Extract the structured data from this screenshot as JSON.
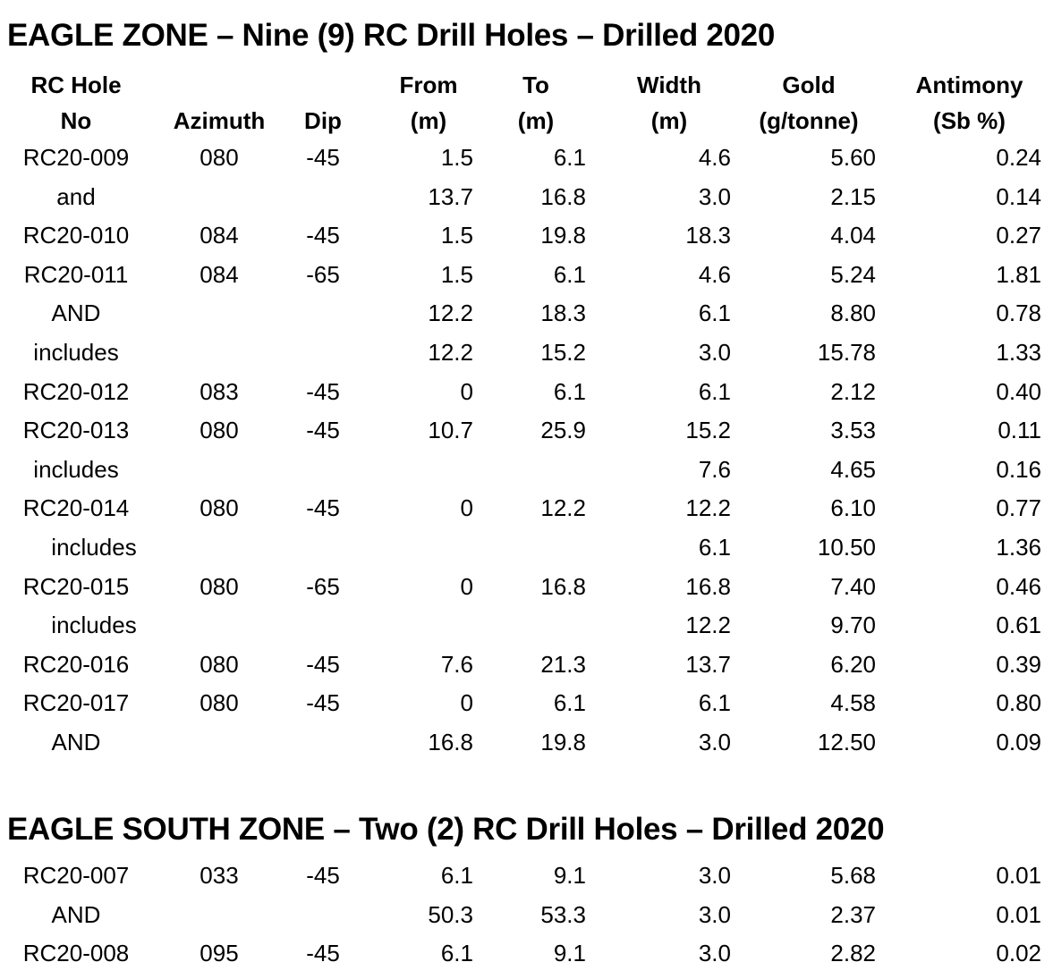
{
  "eagle_zone": {
    "title": "EAGLE ZONE – Nine (9) RC Drill Holes – Drilled 2020",
    "headers": {
      "hole": [
        "RC Hole",
        "No"
      ],
      "azimuth": [
        "",
        "Azimuth"
      ],
      "dip": [
        "",
        "Dip"
      ],
      "from": [
        "From",
        "(m)"
      ],
      "to": [
        "To",
        "(m)"
      ],
      "width": [
        "Width",
        "(m)"
      ],
      "gold": [
        "Gold",
        "(g/tonne)"
      ],
      "antimony": [
        "Antimony",
        "(Sb %)"
      ]
    },
    "rows": [
      {
        "hole": "RC20-009",
        "azimuth": "080",
        "dip": "-45",
        "from": "1.5",
        "to": "6.1",
        "width": "4.6",
        "gold": "5.60",
        "antimony": "0.24"
      },
      {
        "hole": "and",
        "azimuth": "",
        "dip": "",
        "from": "13.7",
        "to": "16.8",
        "width": "3.0",
        "gold": "2.15",
        "antimony": "0.14"
      },
      {
        "hole": "RC20-010",
        "azimuth": "084",
        "dip": "-45",
        "from": "1.5",
        "to": "19.8",
        "width": "18.3",
        "gold": "4.04",
        "antimony": "0.27"
      },
      {
        "hole": "RC20-011",
        "azimuth": "084",
        "dip": "-65",
        "from": "1.5",
        "to": "6.1",
        "width": "4.6",
        "gold": "5.24",
        "antimony": "1.81"
      },
      {
        "hole": "AND",
        "azimuth": "",
        "dip": "",
        "from": "12.2",
        "to": "18.3",
        "width": "6.1",
        "gold": "8.80",
        "antimony": "0.78"
      },
      {
        "hole": "includes",
        "azimuth": "",
        "dip": "",
        "from": "12.2",
        "to": "15.2",
        "width": "3.0",
        "gold": "15.78",
        "antimony": "1.33"
      },
      {
        "hole": "RC20-012",
        "azimuth": "083",
        "dip": "-45",
        "from": "0",
        "to": "6.1",
        "width": "6.1",
        "gold": "2.12",
        "antimony": "0.40"
      },
      {
        "hole": "RC20-013",
        "azimuth": "080",
        "dip": "-45",
        "from": "10.7",
        "to": "25.9",
        "width": "15.2",
        "gold": "3.53",
        "antimony": "0.11"
      },
      {
        "hole": "includes",
        "azimuth": "",
        "dip": "",
        "from": "",
        "to": "",
        "width": "7.6",
        "gold": "4.65",
        "antimony": "0.16"
      },
      {
        "hole": "RC20-014",
        "azimuth": "080",
        "dip": "-45",
        "from": "0",
        "to": "12.2",
        "width": "12.2",
        "gold": "6.10",
        "antimony": "0.77"
      },
      {
        "hole": "includes",
        "azimuth": "",
        "dip": "",
        "from": "",
        "to": "",
        "width": "6.1",
        "gold": "10.50",
        "antimony": "1.36",
        "indent": true
      },
      {
        "hole": "RC20-015",
        "azimuth": "080",
        "dip": "-65",
        "from": "0",
        "to": "16.8",
        "width": "16.8",
        "gold": "7.40",
        "antimony": "0.46"
      },
      {
        "hole": "includes",
        "azimuth": "",
        "dip": "",
        "from": "",
        "to": "",
        "width": "12.2",
        "gold": "9.70",
        "antimony": "0.61",
        "indent": true
      },
      {
        "hole": "RC20-016",
        "azimuth": "080",
        "dip": "-45",
        "from": "7.6",
        "to": "21.3",
        "width": "13.7",
        "gold": "6.20",
        "antimony": "0.39"
      },
      {
        "hole": "RC20-017",
        "azimuth": "080",
        "dip": "-45",
        "from": "0",
        "to": "6.1",
        "width": "6.1",
        "gold": "4.58",
        "antimony": "0.80"
      },
      {
        "hole": "AND",
        "azimuth": "",
        "dip": "",
        "from": "16.8",
        "to": "19.8",
        "width": "3.0",
        "gold": "12.50",
        "antimony": "0.09"
      }
    ]
  },
  "eagle_south_zone": {
    "title": "EAGLE SOUTH ZONE – Two (2) RC Drill Holes – Drilled 2020",
    "rows": [
      {
        "hole": "RC20-007",
        "azimuth": "033",
        "dip": "-45",
        "from": "6.1",
        "to": "9.1",
        "width": "3.0",
        "gold": "5.68",
        "antimony": "0.01"
      },
      {
        "hole": "AND",
        "azimuth": "",
        "dip": "",
        "from": "50.3",
        "to": "53.3",
        "width": "3.0",
        "gold": "2.37",
        "antimony": "0.01"
      },
      {
        "hole": "RC20-008",
        "azimuth": "095",
        "dip": "-45",
        "from": "6.1",
        "to": "9.1",
        "width": "3.0",
        "gold": "2.82",
        "antimony": "0.02"
      }
    ]
  }
}
